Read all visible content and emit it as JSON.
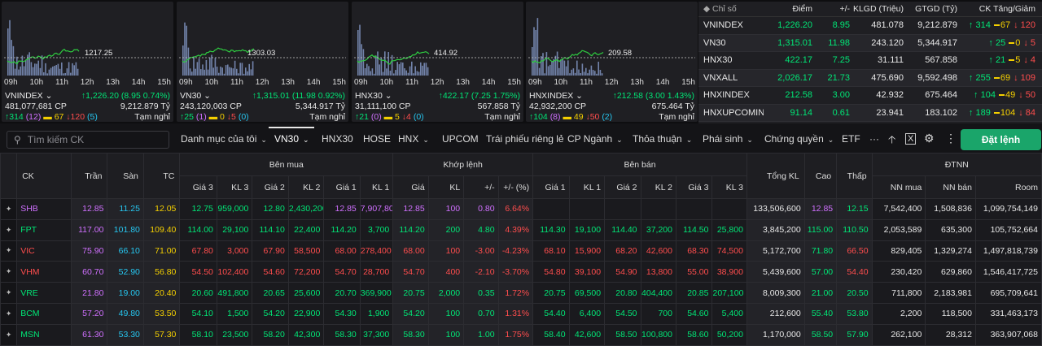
{
  "mini_charts": [
    {
      "name": "VNINDEX",
      "volume": "481,077,681 CP",
      "change": "↑1,226.20 (8.95 0.74%)",
      "value": "9,212.879 Tỷ",
      "ref": "1217.25",
      "up": "↑314",
      "ceil": "(12)",
      "flat": "67",
      "down": "↓120",
      "floor": "(5)",
      "status": "Tạm nghỉ"
    },
    {
      "name": "VN30",
      "volume": "243,120,003 CP",
      "change": "↑1,315.01 (11.98 0.92%)",
      "value": "5,344.917 Tỷ",
      "ref": "1303.03",
      "up": "↑25",
      "ceil": "(1)",
      "flat": "0",
      "down": "↓5",
      "floor": "(0)",
      "status": "Tạm nghỉ"
    },
    {
      "name": "HNX30",
      "volume": "31,111,100 CP",
      "change": "↑422.17 (7.25 1.75%)",
      "value": "567.858 Tỷ",
      "ref": "414.92",
      "up": "↑21",
      "ceil": "(0)",
      "flat": "5",
      "down": "↓4",
      "floor": "(0)",
      "status": "Tạm nghỉ"
    },
    {
      "name": "HNXINDEX",
      "volume": "42,932,200 CP",
      "change": "↑212.58 (3.00 1.43%)",
      "value": "675.464 Tỷ",
      "ref": "209.58",
      "up": "↑104",
      "ceil": "(8)",
      "flat": "49",
      "down": "↓50",
      "floor": "(2)",
      "status": "Tạm nghỉ"
    }
  ],
  "hours": [
    "09h",
    "10h",
    "11h",
    "12h",
    "13h",
    "14h",
    "15h"
  ],
  "index_table": {
    "headers": [
      "Chỉ số",
      "Điểm",
      "+/-",
      "KLGD (Triệu)",
      "GTGD (Tỷ)",
      "CK Tăng/Giảm"
    ],
    "rows": [
      {
        "name": "VNINDEX",
        "point": "1,226.20",
        "change": "8.95",
        "vol": "481.078",
        "val": "9,212.879",
        "up": "↑ 314",
        "flat": "67",
        "down": "↓ 120"
      },
      {
        "name": "VN30",
        "point": "1,315.01",
        "change": "11.98",
        "vol": "243.120",
        "val": "5,344.917",
        "up": "↑ 25",
        "flat": "0",
        "down": "↓ 5"
      },
      {
        "name": "HNX30",
        "point": "422.17",
        "change": "7.25",
        "vol": "31.111",
        "val": "567.858",
        "up": "↑ 21",
        "flat": "5",
        "down": "↓ 4"
      },
      {
        "name": "VNXALL",
        "point": "2,026.17",
        "change": "21.73",
        "vol": "475.690",
        "val": "9,592.498",
        "up": "↑ 255",
        "flat": "69",
        "down": "↓ 109"
      },
      {
        "name": "HNXINDEX",
        "point": "212.58",
        "change": "3.00",
        "vol": "42.932",
        "val": "675.464",
        "up": "↑ 104",
        "flat": "49",
        "down": "↓ 50"
      },
      {
        "name": "HNXUPCOMINDEX",
        "point": "91.14",
        "change": "0.61",
        "vol": "23.941",
        "val": "183.102",
        "up": "↑ 189",
        "flat": "104",
        "down": "↓ 84"
      }
    ]
  },
  "toolbar": {
    "search_placeholder": "Tìm kiếm CK",
    "tabs": [
      "Danh mục của tôi",
      "VN30",
      "HNX30",
      "HOSE",
      "HNX",
      "UPCOM",
      "Trái phiếu riêng lẻ",
      "CP Ngành",
      "Thỏa thuận",
      "Phái sinh",
      "Chứng quyền",
      "ETF",
      "···"
    ],
    "order_button": "Đặt lệnh"
  },
  "board": {
    "groups": [
      "Bên mua",
      "Khớp lệnh",
      "Bên bán",
      "ĐTNN"
    ],
    "cols": [
      "CK",
      "Trần",
      "Sàn",
      "TC",
      "Giá 3",
      "KL 3",
      "Giá 2",
      "KL 2",
      "Giá 1",
      "KL 1",
      "Giá",
      "KL",
      "+/-",
      "+/- (%)",
      "Giá 1",
      "KL 1",
      "Giá 2",
      "KL 2",
      "Giá 3",
      "KL 3",
      "Tổng KL",
      "Cao",
      "Thấp",
      "NN mua",
      "NN bán",
      "Room"
    ],
    "rows": [
      {
        "c": "pu",
        "cells": [
          "SHB",
          "12.85",
          "11.25",
          "12.05",
          "12.75",
          "959,000",
          "12.80",
          "2,430,200",
          "12.85",
          "7,907,800",
          "12.85",
          "100",
          "0.80",
          "6.64%",
          "",
          "",
          "",
          "",
          "",
          "",
          "133,506,600",
          "12.85",
          "12.15",
          "7,542,400",
          "1,508,836",
          "1,099,754,149"
        ]
      },
      {
        "c": "g",
        "cells": [
          "FPT",
          "117.00",
          "101.80",
          "109.40",
          "114.00",
          "29,100",
          "114.10",
          "22,400",
          "114.20",
          "3,700",
          "114.20",
          "200",
          "4.80",
          "4.39%",
          "114.30",
          "19,100",
          "114.40",
          "37,200",
          "114.50",
          "25,800",
          "3,845,200",
          "115.00",
          "110.50",
          "2,053,589",
          "635,300",
          "105,752,664"
        ]
      },
      {
        "c": "red",
        "cells": [
          "VIC",
          "75.90",
          "66.10",
          "71.00",
          "67.80",
          "3,000",
          "67.90",
          "58,500",
          "68.00",
          "278,400",
          "68.00",
          "100",
          "-3.00",
          "-4.23%",
          "68.10",
          "15,900",
          "68.20",
          "42,600",
          "68.30",
          "74,500",
          "5,172,700",
          "71.80",
          "66.50",
          "829,405",
          "1,329,274",
          "1,497,818,739"
        ]
      },
      {
        "c": "red",
        "cells": [
          "VHM",
          "60.70",
          "52.90",
          "56.80",
          "54.50",
          "102,400",
          "54.60",
          "72,200",
          "54.70",
          "28,700",
          "54.70",
          "400",
          "-2.10",
          "-3.70%",
          "54.80",
          "39,100",
          "54.90",
          "13,800",
          "55.00",
          "38,900",
          "5,439,600",
          "57.00",
          "54.40",
          "230,420",
          "629,860",
          "1,546,417,725"
        ]
      },
      {
        "c": "g",
        "cells": [
          "VRE",
          "21.80",
          "19.00",
          "20.40",
          "20.60",
          "491,800",
          "20.65",
          "25,600",
          "20.70",
          "369,900",
          "20.75",
          "2,000",
          "0.35",
          "1.72%",
          "20.75",
          "69,500",
          "20.80",
          "404,400",
          "20.85",
          "207,100",
          "8,009,300",
          "21.00",
          "20.50",
          "711,800",
          "2,183,981",
          "695,709,641"
        ]
      },
      {
        "c": "g",
        "cells": [
          "BCM",
          "57.20",
          "49.80",
          "53.50",
          "54.10",
          "1,500",
          "54.20",
          "22,900",
          "54.30",
          "1,900",
          "54.20",
          "100",
          "0.70",
          "1.31%",
          "54.40",
          "6,400",
          "54.50",
          "700",
          "54.60",
          "5,400",
          "212,600",
          "55.40",
          "53.80",
          "2,200",
          "118,500",
          "331,463,173"
        ]
      },
      {
        "c": "g",
        "cells": [
          "MSN",
          "61.30",
          "53.30",
          "57.30",
          "58.10",
          "23,500",
          "58.20",
          "42,300",
          "58.30",
          "37,300",
          "58.30",
          "100",
          "1.00",
          "1.75%",
          "58.40",
          "42,600",
          "58.50",
          "100,800",
          "58.60",
          "50,200",
          "1,170,000",
          "58.50",
          "57.90",
          "262,100",
          "28,312",
          "363,907,068"
        ]
      }
    ]
  },
  "colors": {
    "up": "#00e676",
    "down": "#ff4d4d",
    "ref": "#f5d000",
    "ceil": "#d070ff",
    "floor": "#26c6f0",
    "accent": "#1aa56a"
  }
}
